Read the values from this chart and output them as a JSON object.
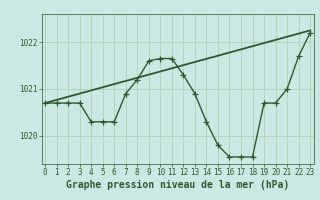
{
  "x": [
    0,
    1,
    2,
    3,
    4,
    5,
    6,
    7,
    8,
    9,
    10,
    11,
    12,
    13,
    14,
    15,
    16,
    17,
    18,
    19,
    20,
    21,
    22,
    23
  ],
  "pressure": [
    1020.7,
    1020.7,
    1020.7,
    1020.7,
    1020.3,
    1020.3,
    1020.3,
    1020.9,
    1021.2,
    1021.6,
    1021.65,
    1021.65,
    1021.3,
    1020.9,
    1020.3,
    1019.8,
    1019.55,
    1019.55,
    1019.55,
    1020.7,
    1020.7,
    1021.0,
    1021.7,
    1022.2
  ],
  "trend_x": [
    0,
    23
  ],
  "trend_y": [
    1020.7,
    1022.25
  ],
  "line_color": "#2d5a2d",
  "bg_color": "#cce8e4",
  "grid_color": "#aaccaa",
  "xlabel": "Graphe pression niveau de la mer (hPa)",
  "ylim": [
    1019.4,
    1022.6
  ],
  "xlim": [
    -0.3,
    23.3
  ],
  "yticks": [
    1020,
    1021,
    1022
  ],
  "xticks": [
    0,
    1,
    2,
    3,
    4,
    5,
    6,
    7,
    8,
    9,
    10,
    11,
    12,
    13,
    14,
    15,
    16,
    17,
    18,
    19,
    20,
    21,
    22,
    23
  ],
  "tick_fontsize": 5.5,
  "xlabel_fontsize": 7.0,
  "line_width": 1.0,
  "trend_linewidth": 1.3,
  "marker_size": 4.0
}
